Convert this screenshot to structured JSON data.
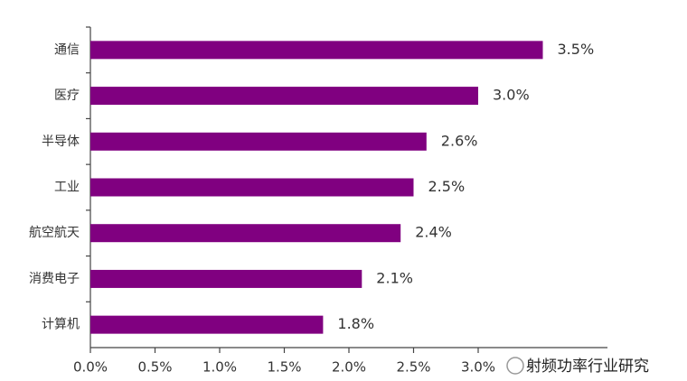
{
  "chart_data": {
    "type": "bar",
    "orientation": "horizontal",
    "categories": [
      "通信",
      "医疗",
      "半导体",
      "工业",
      "航空航天",
      "消费电子",
      "计算机"
    ],
    "values": [
      3.5,
      3.0,
      2.6,
      2.5,
      2.4,
      2.1,
      1.8
    ],
    "value_labels": [
      "3.5%",
      "3.0%",
      "2.6%",
      "2.5%",
      "2.4%",
      "2.1%",
      "1.8%"
    ],
    "color": "#800080",
    "xlim": [
      0,
      4
    ],
    "xticks": [
      {
        "value": 0,
        "label": "0.0%"
      },
      {
        "value": 0.5,
        "label": "0.5%"
      },
      {
        "value": 1,
        "label": "1.0%"
      },
      {
        "value": 1.5,
        "label": "1.5%"
      },
      {
        "value": 2,
        "label": "2.0%"
      },
      {
        "value": 2.5,
        "label": "2.5%"
      },
      {
        "value": 3,
        "label": "3.0%"
      }
    ],
    "grid": false
  },
  "watermark": "射频功率行业研究"
}
